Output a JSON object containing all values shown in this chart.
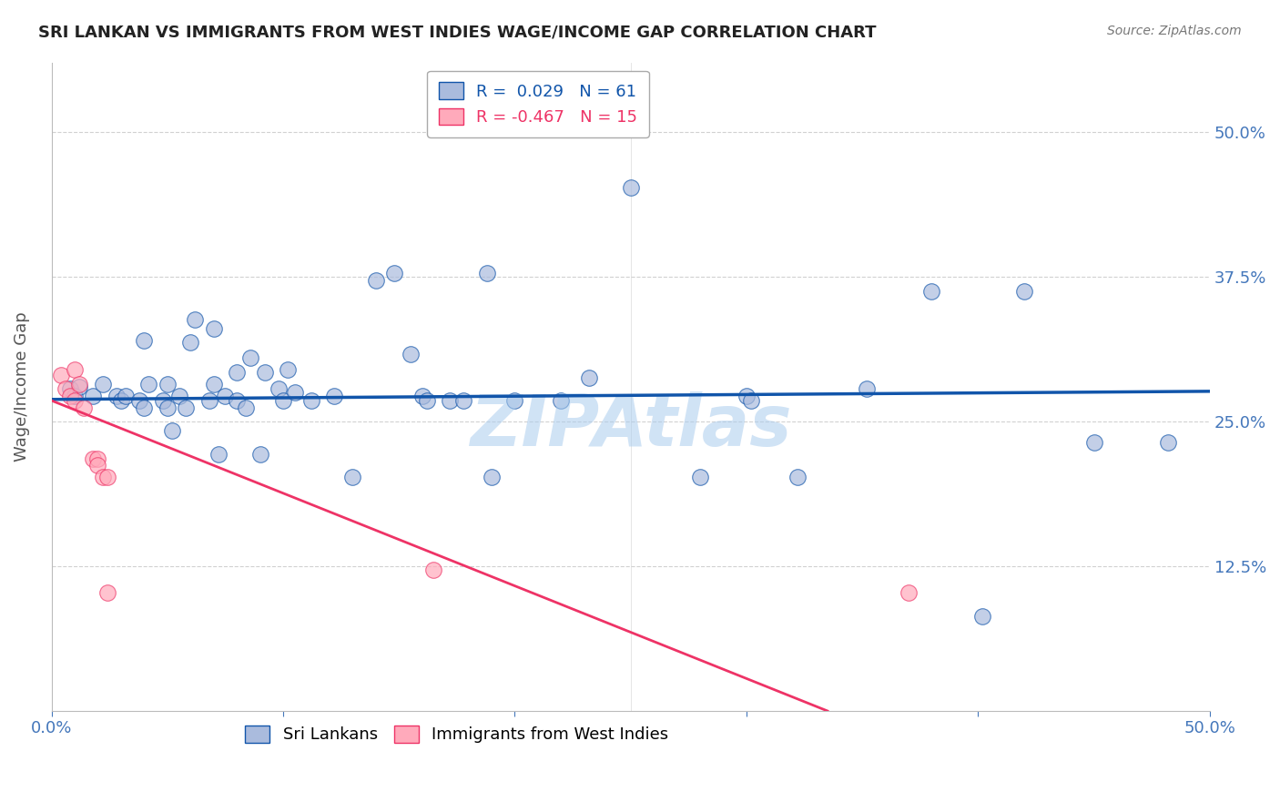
{
  "title": "SRI LANKAN VS IMMIGRANTS FROM WEST INDIES WAGE/INCOME GAP CORRELATION CHART",
  "source": "Source: ZipAtlas.com",
  "ylabel": "Wage/Income Gap",
  "y_tick_labels": [
    "50.0%",
    "37.5%",
    "25.0%",
    "12.5%"
  ],
  "y_tick_values": [
    0.5,
    0.375,
    0.25,
    0.125
  ],
  "x_range": [
    0.0,
    0.5
  ],
  "y_range": [
    0.0,
    0.56
  ],
  "legend1_label": "Sri Lankans",
  "legend2_label": "Immigrants from West Indies",
  "r1": 0.029,
  "n1": 61,
  "r2": -0.467,
  "n2": 15,
  "blue_color": "#AABBDD",
  "pink_color": "#FFAABB",
  "blue_line_color": "#1155AA",
  "pink_line_color": "#EE3366",
  "watermark": "ZIPAtlas",
  "watermark_color": "#AACCEE",
  "title_color": "#333333",
  "axis_color": "#4477BB",
  "blue_scatter": [
    [
      0.008,
      0.278
    ],
    [
      0.01,
      0.272
    ],
    [
      0.012,
      0.28
    ],
    [
      0.018,
      0.272
    ],
    [
      0.022,
      0.282
    ],
    [
      0.028,
      0.272
    ],
    [
      0.03,
      0.268
    ],
    [
      0.032,
      0.272
    ],
    [
      0.038,
      0.268
    ],
    [
      0.04,
      0.262
    ],
    [
      0.04,
      0.32
    ],
    [
      0.042,
      0.282
    ],
    [
      0.048,
      0.268
    ],
    [
      0.05,
      0.262
    ],
    [
      0.052,
      0.242
    ],
    [
      0.05,
      0.282
    ],
    [
      0.055,
      0.272
    ],
    [
      0.058,
      0.262
    ],
    [
      0.06,
      0.318
    ],
    [
      0.062,
      0.338
    ],
    [
      0.068,
      0.268
    ],
    [
      0.07,
      0.282
    ],
    [
      0.07,
      0.33
    ],
    [
      0.072,
      0.222
    ],
    [
      0.075,
      0.272
    ],
    [
      0.08,
      0.268
    ],
    [
      0.08,
      0.292
    ],
    [
      0.084,
      0.262
    ],
    [
      0.086,
      0.305
    ],
    [
      0.09,
      0.222
    ],
    [
      0.092,
      0.292
    ],
    [
      0.098,
      0.278
    ],
    [
      0.1,
      0.268
    ],
    [
      0.102,
      0.295
    ],
    [
      0.105,
      0.275
    ],
    [
      0.112,
      0.268
    ],
    [
      0.122,
      0.272
    ],
    [
      0.13,
      0.202
    ],
    [
      0.14,
      0.372
    ],
    [
      0.148,
      0.378
    ],
    [
      0.155,
      0.308
    ],
    [
      0.16,
      0.272
    ],
    [
      0.162,
      0.268
    ],
    [
      0.172,
      0.268
    ],
    [
      0.178,
      0.268
    ],
    [
      0.188,
      0.378
    ],
    [
      0.19,
      0.202
    ],
    [
      0.2,
      0.268
    ],
    [
      0.22,
      0.268
    ],
    [
      0.232,
      0.288
    ],
    [
      0.25,
      0.452
    ],
    [
      0.28,
      0.202
    ],
    [
      0.3,
      0.272
    ],
    [
      0.302,
      0.268
    ],
    [
      0.322,
      0.202
    ],
    [
      0.352,
      0.278
    ],
    [
      0.38,
      0.362
    ],
    [
      0.402,
      0.082
    ],
    [
      0.42,
      0.362
    ],
    [
      0.45,
      0.232
    ],
    [
      0.482,
      0.232
    ]
  ],
  "pink_scatter": [
    [
      0.004,
      0.29
    ],
    [
      0.006,
      0.278
    ],
    [
      0.008,
      0.272
    ],
    [
      0.01,
      0.268
    ],
    [
      0.01,
      0.295
    ],
    [
      0.012,
      0.282
    ],
    [
      0.014,
      0.262
    ],
    [
      0.018,
      0.218
    ],
    [
      0.02,
      0.218
    ],
    [
      0.02,
      0.212
    ],
    [
      0.022,
      0.202
    ],
    [
      0.024,
      0.202
    ],
    [
      0.024,
      0.102
    ],
    [
      0.165,
      0.122
    ],
    [
      0.37,
      0.102
    ]
  ],
  "blue_trendline": [
    [
      0.0,
      0.269
    ],
    [
      0.5,
      0.276
    ]
  ],
  "pink_trendline": [
    [
      0.0,
      0.268
    ],
    [
      0.335,
      0.0
    ]
  ]
}
